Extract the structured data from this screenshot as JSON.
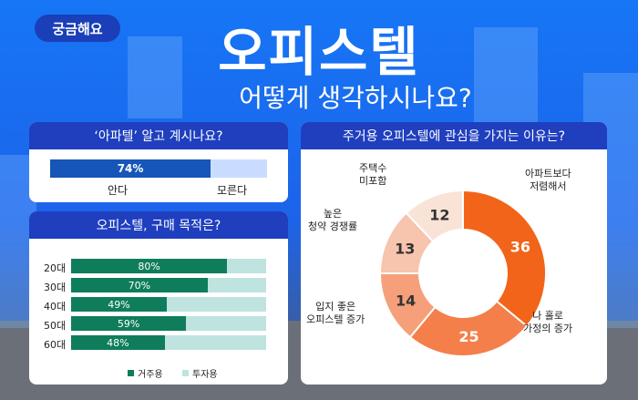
{
  "badge": "궁금해요",
  "title": "오피스텔",
  "subtitle": "어떻게 생각하시나요?",
  "colors": {
    "bg": "#1e6df2",
    "panel_header": "#1f3fbf",
    "awareness_know": "#1656b8",
    "awareness_dont": "#c9dcff",
    "purpose_residence": "#0f7d5c",
    "purpose_investment": "#bfe3df",
    "donut": [
      "#f26419",
      "#f47f4b",
      "#f5a07a",
      "#f7c4ad",
      "#f9e3d7"
    ]
  },
  "chart_data": [
    {
      "type": "bar",
      "title": "‘아파텔’ 알고 계시나요?",
      "categories": [
        "안다",
        "모른다"
      ],
      "values": [
        74,
        26
      ],
      "value_labels": [
        "74%"
      ],
      "ylim": [
        0,
        100
      ]
    },
    {
      "type": "bar",
      "orientation": "horizontal",
      "stacked": true,
      "title": "오피스텔, 구매 목적은?",
      "categories": [
        "20대",
        "30대",
        "40대",
        "50대",
        "60대"
      ],
      "series": [
        {
          "name": "거주용",
          "values": [
            80,
            70,
            49,
            59,
            48
          ]
        },
        {
          "name": "투자용",
          "values": [
            20,
            30,
            51,
            41,
            52
          ]
        }
      ],
      "value_labels": [
        "80%",
        "70%",
        "49%",
        "59%",
        "48%"
      ],
      "xlim": [
        0,
        100
      ],
      "legend": "bottom"
    },
    {
      "type": "pie",
      "donut": true,
      "title": "주거용 오피스텔에 관심을 가지는 이유는?",
      "categories": [
        "아파트보다\n저렴해서",
        "나 홀로\n가정의 증가",
        "입지 좋은\n오피스텔 증가",
        "높은\n청약 경쟁률",
        "주택수\n미포함"
      ],
      "values": [
        36,
        25,
        14,
        13,
        12
      ],
      "value_labels": [
        "36",
        "25",
        "14",
        "13",
        "12"
      ]
    }
  ]
}
